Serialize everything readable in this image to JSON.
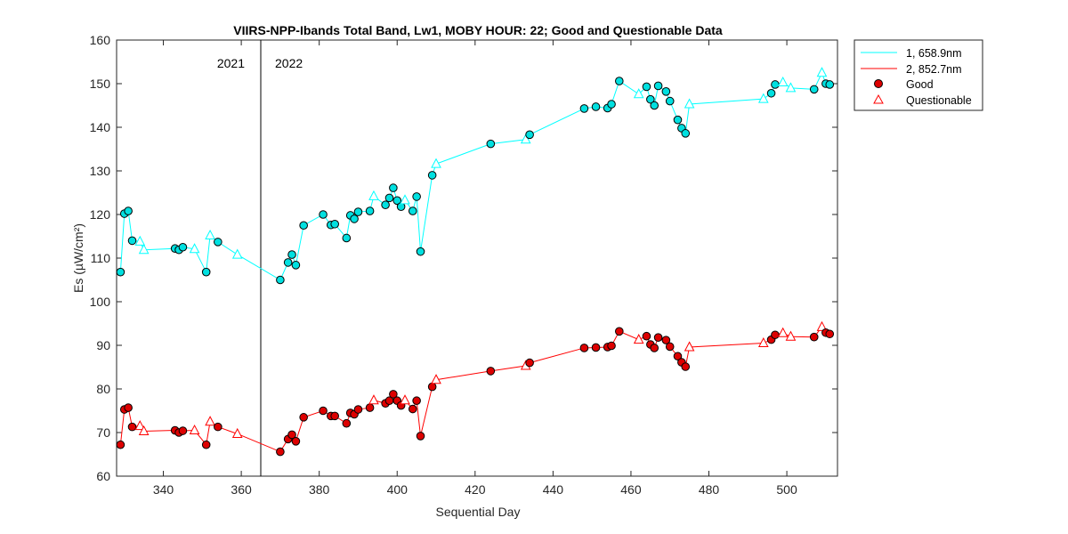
{
  "chart_data": {
    "type": "line",
    "title": "VIIRS-NPP-Ibands Total Band,  Lw1, MOBY HOUR: 22;  Good and Questionable Data",
    "xlabel": "Sequential Day",
    "ylabel": "Es (µW/cm²)",
    "xlim": [
      328,
      513
    ],
    "ylim": [
      60,
      160
    ],
    "xticks": [
      340,
      360,
      380,
      400,
      420,
      440,
      460,
      480,
      500
    ],
    "yticks": [
      60,
      70,
      80,
      90,
      100,
      110,
      120,
      130,
      140,
      150,
      160
    ],
    "grid": false,
    "legend_position": "outside-top-right",
    "year_divider": {
      "x": 365,
      "left_label": "2021",
      "right_label": "2022"
    },
    "marker_legend": {
      "good": "Good",
      "questionable": "Questionable"
    },
    "series": [
      {
        "name": "1, 658.9nm",
        "color": "#00ffff",
        "marker_fill": "#00e0e0",
        "x": [
          329,
          330,
          331,
          332,
          334,
          335,
          343,
          344,
          345,
          348,
          351,
          352,
          354,
          359,
          370,
          372,
          373,
          374,
          376,
          381,
          383,
          384,
          387,
          388,
          389,
          390,
          393,
          394,
          397,
          398,
          399,
          400,
          401,
          402,
          404,
          405,
          406,
          409,
          410,
          424,
          433,
          434,
          448,
          451,
          454,
          455,
          457,
          462,
          464,
          465,
          466,
          467,
          469,
          470,
          472,
          473,
          474,
          475,
          494,
          496,
          497,
          499,
          501,
          507,
          509,
          510,
          511
        ],
        "y": [
          106.8,
          120.2,
          120.8,
          114.0,
          113.8,
          111.9,
          112.2,
          111.9,
          112.5,
          112.1,
          106.8,
          115.2,
          113.7,
          110.8,
          105.0,
          109.0,
          110.8,
          108.4,
          117.5,
          120.0,
          117.6,
          117.8,
          114.6,
          119.8,
          119.0,
          120.6,
          120.8,
          124.2,
          122.2,
          123.8,
          126.1,
          123.2,
          121.8,
          123.3,
          120.8,
          124.1,
          111.5,
          129.0,
          131.6,
          136.2,
          137.2,
          138.3,
          144.3,
          144.7,
          144.4,
          145.3,
          150.6,
          147.6,
          149.3,
          146.4,
          145.0,
          149.5,
          148.2,
          146.0,
          141.7,
          139.8,
          138.6,
          145.3,
          146.5,
          147.8,
          149.8,
          150.3,
          149.0,
          148.7,
          152.5,
          150.0,
          149.8
        ],
        "quality": [
          "G",
          "G",
          "G",
          "G",
          "Q",
          "Q",
          "G",
          "G",
          "G",
          "Q",
          "G",
          "Q",
          "G",
          "Q",
          "G",
          "G",
          "G",
          "G",
          "G",
          "G",
          "G",
          "G",
          "G",
          "G",
          "G",
          "G",
          "G",
          "Q",
          "G",
          "G",
          "G",
          "G",
          "G",
          "Q",
          "G",
          "G",
          "G",
          "G",
          "Q",
          "G",
          "Q",
          "G",
          "G",
          "G",
          "G",
          "G",
          "G",
          "Q",
          "G",
          "G",
          "G",
          "G",
          "G",
          "G",
          "G",
          "G",
          "G",
          "Q",
          "Q",
          "G",
          "G",
          "Q",
          "Q",
          "G",
          "Q",
          "G",
          "G"
        ]
      },
      {
        "name": "2, 852.7nm",
        "color": "#ff0000",
        "marker_fill": "#dd0000",
        "x": [
          329,
          330,
          331,
          332,
          334,
          335,
          343,
          344,
          345,
          348,
          351,
          352,
          354,
          359,
          370,
          372,
          373,
          374,
          376,
          381,
          383,
          384,
          387,
          388,
          389,
          390,
          393,
          394,
          397,
          398,
          399,
          400,
          401,
          402,
          404,
          405,
          406,
          409,
          410,
          424,
          433,
          434,
          448,
          451,
          454,
          455,
          457,
          462,
          464,
          465,
          466,
          467,
          469,
          470,
          472,
          473,
          474,
          475,
          494,
          496,
          497,
          499,
          501,
          507,
          509,
          510,
          511
        ],
        "y": [
          67.2,
          75.3,
          75.7,
          71.3,
          71.5,
          70.3,
          70.5,
          70.0,
          70.4,
          70.5,
          67.2,
          72.5,
          71.3,
          69.7,
          65.6,
          68.5,
          69.5,
          68.0,
          73.5,
          75.0,
          73.8,
          73.8,
          72.1,
          74.5,
          74.2,
          75.3,
          75.7,
          77.4,
          76.7,
          77.3,
          78.8,
          77.3,
          76.2,
          77.4,
          75.4,
          77.3,
          69.2,
          80.5,
          82.1,
          84.1,
          85.3,
          86.0,
          89.4,
          89.5,
          89.6,
          89.9,
          93.2,
          91.3,
          92.1,
          90.2,
          89.4,
          91.8,
          91.2,
          89.7,
          87.5,
          86.1,
          85.1,
          89.6,
          90.5,
          91.3,
          92.4,
          92.8,
          92.0,
          91.9,
          94.2,
          92.9,
          92.6
        ],
        "quality": [
          "G",
          "G",
          "G",
          "G",
          "Q",
          "Q",
          "G",
          "G",
          "G",
          "Q",
          "G",
          "Q",
          "G",
          "Q",
          "G",
          "G",
          "G",
          "G",
          "G",
          "G",
          "G",
          "G",
          "G",
          "G",
          "G",
          "G",
          "G",
          "Q",
          "G",
          "G",
          "G",
          "G",
          "G",
          "Q",
          "G",
          "G",
          "G",
          "G",
          "Q",
          "G",
          "Q",
          "G",
          "G",
          "G",
          "G",
          "G",
          "G",
          "Q",
          "G",
          "G",
          "G",
          "G",
          "G",
          "G",
          "G",
          "G",
          "G",
          "Q",
          "Q",
          "G",
          "G",
          "Q",
          "Q",
          "G",
          "Q",
          "G",
          "G"
        ]
      }
    ]
  }
}
